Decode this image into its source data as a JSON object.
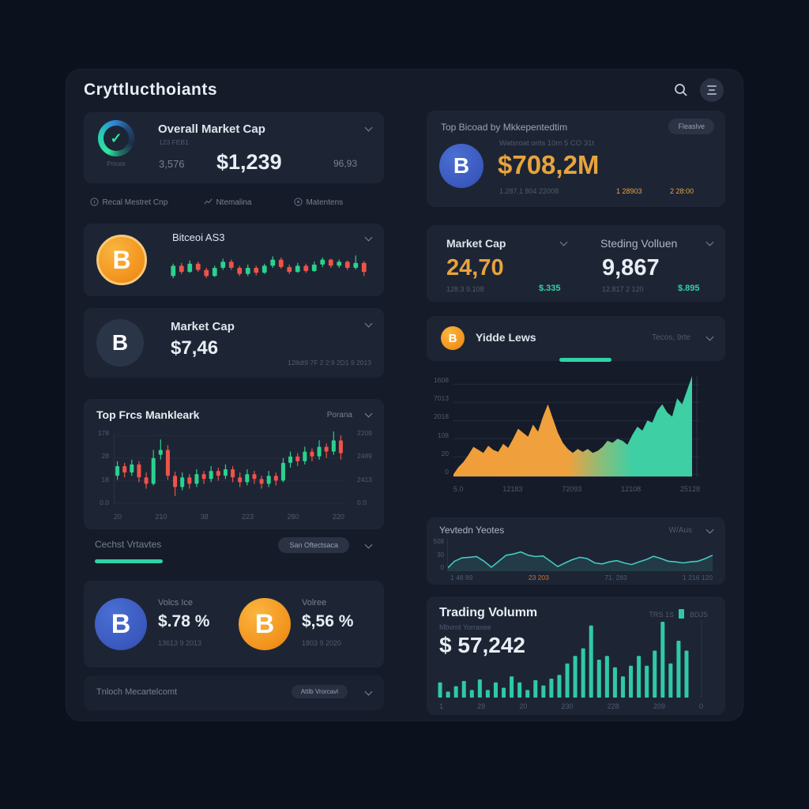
{
  "app": {
    "title": "Cryttlucthoiants"
  },
  "header": {
    "search_icon": "search-icon",
    "menu_icon": "menu-icon"
  },
  "colors": {
    "accent_teal": "#2fd3a5",
    "accent_orange": "#e8a33d",
    "bitcoin_orange": "#f2921c",
    "coin_blue": "#3a58bd",
    "candle_up": "#2bd18f",
    "candle_down": "#ee5349",
    "panel_bg": "#151b29",
    "card_bg": "#1d2534"
  },
  "left": {
    "overall": {
      "title": "Overall Market Cap",
      "subtitle": "123 FEB1",
      "left_stat": "3,576",
      "value": "$1,239",
      "right_stat": "96,93",
      "ring_label": "Prices"
    },
    "nav": [
      {
        "label": "Recal Mestret Cnp"
      },
      {
        "label": "Ntemalina"
      },
      {
        "label": "Matentens"
      }
    ],
    "bitcoin_card": {
      "title": "Bitceoi AS3",
      "coin_symbol": "B"
    },
    "market_cap_card": {
      "title": "Market Cap",
      "value": "$7,46",
      "meta": "128dt9 7F 2 2:9 2D1 9 2013",
      "coin_symbol": "B"
    },
    "chart_card": {
      "title": "Top Frcs Mankleark",
      "dropdown": "Porana"
    },
    "cechst": {
      "label": "Cechst Vrtavtes",
      "pill": "San Oftectsaca"
    },
    "coins": [
      {
        "label": "Volcs Ice",
        "value": "$.78 %",
        "meta": "13613 9 2013",
        "coin_symbol": "B"
      },
      {
        "label": "Volree",
        "value": "$,56 %",
        "meta": "1803 9 2020",
        "coin_symbol": "B"
      }
    ],
    "footer": {
      "label": "Tnloch Mecartelcomt",
      "pill": "Attlb Vrorcavl"
    }
  },
  "right": {
    "top_card": {
      "title": "Top Bicoad by Mkkepentedtim",
      "pill": "Fleaslve",
      "subtitle": "Watsroat orits 10m 5 CO 31t",
      "value": "$708,2M",
      "meta": "1.287.1 804 22008",
      "meta_orange1": "1 28903",
      "meta_orange2": "2 28:00",
      "coin_symbol": "B"
    },
    "stats": {
      "left": {
        "title": "Market Cap",
        "value": "24,70",
        "meta": "128.3 9.108",
        "delta": "$.335"
      },
      "right": {
        "title": "Steding Volluen",
        "value": "9,867",
        "meta": "12.817 2 120",
        "delta": "$.895"
      }
    },
    "yidde": {
      "label": "Yidde Lews",
      "dropdown": "Tecos, 9rte",
      "coin_symbol": "B"
    },
    "line_card": {
      "title": "Yevtedn Yeotes",
      "dropdown": "W/Aus"
    },
    "volume_card": {
      "title": "Trading Volumm",
      "tag1": "TRS 1S",
      "tag2": "BDJS",
      "subtitle": "Mbvrnt Yorraxee",
      "value": "$ 57,242"
    }
  },
  "chart_data": [
    {
      "id": "btc-mini",
      "type": "candlestick",
      "candles": [
        [
          30,
          55,
          25,
          60
        ],
        [
          55,
          40,
          35,
          62
        ],
        [
          40,
          60,
          38,
          68
        ],
        [
          60,
          45,
          40,
          65
        ],
        [
          45,
          30,
          25,
          50
        ],
        [
          30,
          50,
          28,
          55
        ],
        [
          50,
          65,
          45,
          72
        ],
        [
          65,
          50,
          45,
          70
        ],
        [
          50,
          35,
          30,
          55
        ],
        [
          35,
          50,
          30,
          58
        ],
        [
          50,
          38,
          32,
          55
        ],
        [
          38,
          55,
          35,
          60
        ],
        [
          55,
          70,
          50,
          78
        ],
        [
          70,
          52,
          48,
          75
        ],
        [
          52,
          40,
          35,
          58
        ],
        [
          40,
          55,
          38,
          62
        ],
        [
          55,
          42,
          38,
          60
        ],
        [
          42,
          58,
          40,
          65
        ],
        [
          58,
          70,
          52,
          75
        ],
        [
          70,
          55,
          50,
          72
        ],
        [
          55,
          65,
          50,
          70
        ],
        [
          65,
          50,
          45,
          68
        ],
        [
          50,
          62,
          46,
          80
        ],
        [
          62,
          40,
          30,
          66
        ]
      ],
      "up_color": "#2bd18f",
      "down_color": "#ee5349"
    },
    {
      "id": "top-prices",
      "type": "candlestick",
      "title": "Top Frcs Mankleark",
      "candles": [
        [
          40,
          52,
          35,
          58
        ],
        [
          52,
          44,
          38,
          56
        ],
        [
          44,
          54,
          40,
          60
        ],
        [
          54,
          38,
          32,
          58
        ],
        [
          38,
          30,
          24,
          44
        ],
        [
          30,
          62,
          28,
          72
        ],
        [
          66,
          72,
          60,
          85
        ],
        [
          72,
          40,
          35,
          78
        ],
        [
          40,
          26,
          15,
          45
        ],
        [
          26,
          38,
          22,
          44
        ],
        [
          38,
          30,
          24,
          42
        ],
        [
          30,
          42,
          26,
          48
        ],
        [
          42,
          36,
          30,
          46
        ],
        [
          36,
          46,
          32,
          52
        ],
        [
          46,
          40,
          34,
          50
        ],
        [
          40,
          48,
          36,
          54
        ],
        [
          48,
          38,
          32,
          52
        ],
        [
          38,
          32,
          26,
          44
        ],
        [
          32,
          42,
          28,
          48
        ],
        [
          42,
          36,
          30,
          46
        ],
        [
          36,
          30,
          24,
          40
        ],
        [
          30,
          40,
          26,
          46
        ],
        [
          40,
          34,
          28,
          44
        ],
        [
          34,
          56,
          32,
          62
        ],
        [
          56,
          64,
          50,
          70
        ],
        [
          64,
          58,
          52,
          68
        ],
        [
          58,
          70,
          54,
          76
        ],
        [
          70,
          64,
          58,
          74
        ],
        [
          64,
          76,
          60,
          84
        ],
        [
          76,
          70,
          62,
          80
        ],
        [
          70,
          84,
          66,
          95
        ],
        [
          84,
          68,
          60,
          90
        ]
      ],
      "y_left": [
        "178",
        "28",
        "18",
        "0.0"
      ],
      "y_right": [
        "2209",
        "2489",
        "2413",
        "0.0"
      ],
      "x_labels": [
        "20",
        "210",
        "38",
        "223",
        "280",
        "220"
      ],
      "grid": [
        0.1,
        0.38,
        0.66,
        0.94
      ],
      "up_color": "#2bd18f",
      "down_color": "#ee5349"
    },
    {
      "id": "market-area",
      "type": "area",
      "values": [
        3,
        10,
        15,
        22,
        30,
        27,
        24,
        31,
        27,
        25,
        33,
        29,
        38,
        48,
        44,
        40,
        52,
        45,
        60,
        72,
        58,
        44,
        34,
        28,
        24,
        28,
        25,
        28,
        24,
        26,
        30,
        36,
        34,
        38,
        36,
        32,
        42,
        50,
        46,
        56,
        54,
        66,
        72,
        64,
        60,
        78,
        72,
        86,
        100
      ],
      "y_labels": [
        "1608",
        "7013",
        "2018",
        "108",
        "20",
        "0"
      ],
      "x_labels": [
        "5.0",
        "12183",
        "72093",
        "12108",
        "25128"
      ],
      "grid": [
        0.08,
        0.26,
        0.44,
        0.62,
        0.8,
        0.97
      ],
      "gradient": [
        "#f09e38",
        "#f0a13e",
        "#8abd7a",
        "#3ecfa4"
      ],
      "gradient_stops": [
        0,
        0.48,
        0.62,
        0.75
      ]
    },
    {
      "id": "yevtedn-line",
      "type": "line",
      "values": [
        8,
        30,
        40,
        42,
        44,
        30,
        12,
        30,
        48,
        52,
        58,
        48,
        44,
        46,
        30,
        14,
        25,
        35,
        42,
        38,
        25,
        22,
        28,
        32,
        25,
        20,
        28,
        35,
        45,
        38,
        30,
        28,
        25,
        28,
        30,
        38,
        48
      ],
      "y_labels": [
        "508",
        "30",
        "0"
      ],
      "x_labels": [
        "1 48 89",
        "23 203",
        "71. 283",
        "1 216 120"
      ],
      "line_color": "#46c8c2",
      "fill_color": "rgba(70,200,194,0.14)"
    },
    {
      "id": "volume-bars",
      "type": "bar",
      "values": [
        0.2,
        0.08,
        0.15,
        0.22,
        0.1,
        0.24,
        0.1,
        0.2,
        0.13,
        0.28,
        0.2,
        0.1,
        0.23,
        0.16,
        0.25,
        0.3,
        0.45,
        0.55,
        0.65,
        0.95,
        0.5,
        0.55,
        0.4,
        0.28,
        0.42,
        0.55,
        0.42,
        0.62,
        1.0,
        0.45,
        0.75,
        0.62
      ],
      "x_labels": [
        "1",
        "29",
        "20",
        "230",
        "228",
        "209",
        "0"
      ],
      "bar_color": "#2fc9a8"
    }
  ]
}
